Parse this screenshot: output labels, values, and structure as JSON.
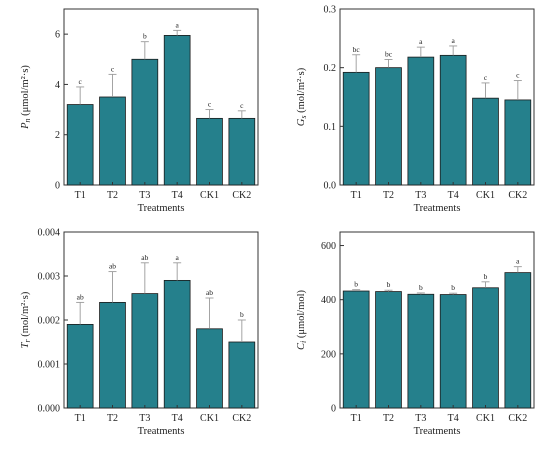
{
  "colors": {
    "bar": "#25808c",
    "axis": "#333333",
    "error": "#9a9a9a"
  },
  "chart_data": [
    {
      "id": "pn",
      "type": "bar",
      "categories": [
        "T1",
        "T2",
        "T3",
        "T4",
        "CK1",
        "CK2"
      ],
      "values": [
        3.2,
        3.5,
        5.0,
        5.95,
        2.65,
        2.65
      ],
      "errors": [
        0.7,
        0.9,
        0.7,
        0.2,
        0.35,
        0.3
      ],
      "significance": [
        "c",
        "c",
        "b",
        "a",
        "c",
        "c"
      ],
      "xlabel": "Treatments",
      "ylabel_main": "P",
      "ylabel_sub": "n",
      "ylabel_unit": "(μmol/m²·s)",
      "ylim": [
        0,
        7
      ],
      "yticks": [
        0,
        2,
        4,
        6
      ],
      "ytick_labels": [
        "0",
        "2",
        "4",
        "6"
      ]
    },
    {
      "id": "gs",
      "type": "bar",
      "categories": [
        "T1",
        "T2",
        "T3",
        "T4",
        "CK1",
        "CK2"
      ],
      "values": [
        0.192,
        0.2,
        0.218,
        0.221,
        0.148,
        0.145
      ],
      "errors": [
        0.03,
        0.014,
        0.017,
        0.016,
        0.026,
        0.033
      ],
      "significance": [
        "bc",
        "bc",
        "a",
        "a",
        "c",
        "c"
      ],
      "xlabel": "Treatments",
      "ylabel_main": "G",
      "ylabel_sub": "s",
      "ylabel_unit": "(mol/m²·s)",
      "ylim": [
        0,
        0.3
      ],
      "yticks": [
        0,
        0.1,
        0.2,
        0.3
      ],
      "ytick_labels": [
        "0.0",
        "0.1",
        "0.2",
        "0.3"
      ]
    },
    {
      "id": "tr",
      "type": "bar",
      "categories": [
        "T1",
        "T2",
        "T3",
        "T4",
        "CK1",
        "CK2"
      ],
      "values": [
        0.0019,
        0.0024,
        0.0026,
        0.0029,
        0.0018,
        0.0015
      ],
      "errors": [
        0.0005,
        0.0007,
        0.0007,
        0.0004,
        0.0007,
        0.0005
      ],
      "significance": [
        "ab",
        "ab",
        "ab",
        "a",
        "ab",
        "b"
      ],
      "xlabel": "Treatments",
      "ylabel_main": "T",
      "ylabel_sub": "r",
      "ylabel_unit": "(mol/m²·s)",
      "ylim": [
        0,
        0.004
      ],
      "yticks": [
        0,
        0.001,
        0.002,
        0.003,
        0.004
      ],
      "ytick_labels": [
        "0.000",
        "0.001",
        "0.002",
        "0.003",
        "0.004"
      ]
    },
    {
      "id": "ci",
      "type": "bar",
      "categories": [
        "T1",
        "T2",
        "T3",
        "T4",
        "CK1",
        "CK2"
      ],
      "values": [
        432,
        430,
        420,
        419,
        444,
        500
      ],
      "errors": [
        5,
        5,
        5,
        5,
        22,
        22
      ],
      "significance": [
        "b",
        "b",
        "b",
        "b",
        "b",
        "a"
      ],
      "xlabel": "Treatments",
      "ylabel_main": "C",
      "ylabel_sub": "i",
      "ylabel_unit": "(μmol/mol)",
      "ylim": [
        0,
        650
      ],
      "yticks": [
        0,
        200,
        400,
        600
      ],
      "ytick_labels": [
        "0",
        "200",
        "400",
        "600"
      ]
    }
  ]
}
